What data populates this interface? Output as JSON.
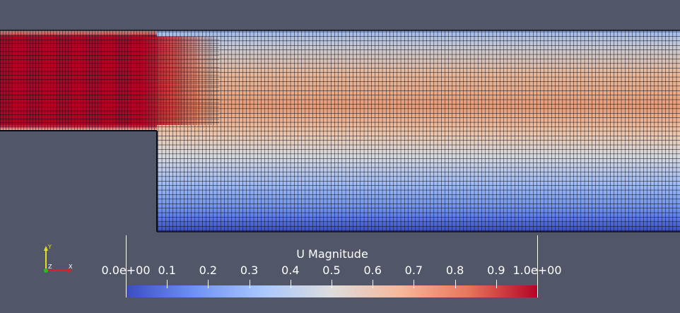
{
  "scalar_bar": {
    "title": "U Magnitude",
    "min": 0.0,
    "max": 1.0,
    "ticks": [
      "0.0e+00",
      "0.1",
      "0.2",
      "0.3",
      "0.4",
      "0.5",
      "0.6",
      "0.7",
      "0.8",
      "0.9",
      "1.0e+00"
    ],
    "colormap": [
      "#3b4cc0",
      "#6f92f3",
      "#aac7fd",
      "#dddddd",
      "#f7b89c",
      "#e7755b",
      "#b40426"
    ]
  },
  "axes_widget": {
    "x_label": "X",
    "y_label": "Y",
    "z_label": "Z",
    "x_color": "#e02020",
    "y_color": "#e0e020",
    "z_color": "#20c020"
  },
  "colors": {
    "background": "#525669",
    "grid_line": "#0a0a14"
  }
}
